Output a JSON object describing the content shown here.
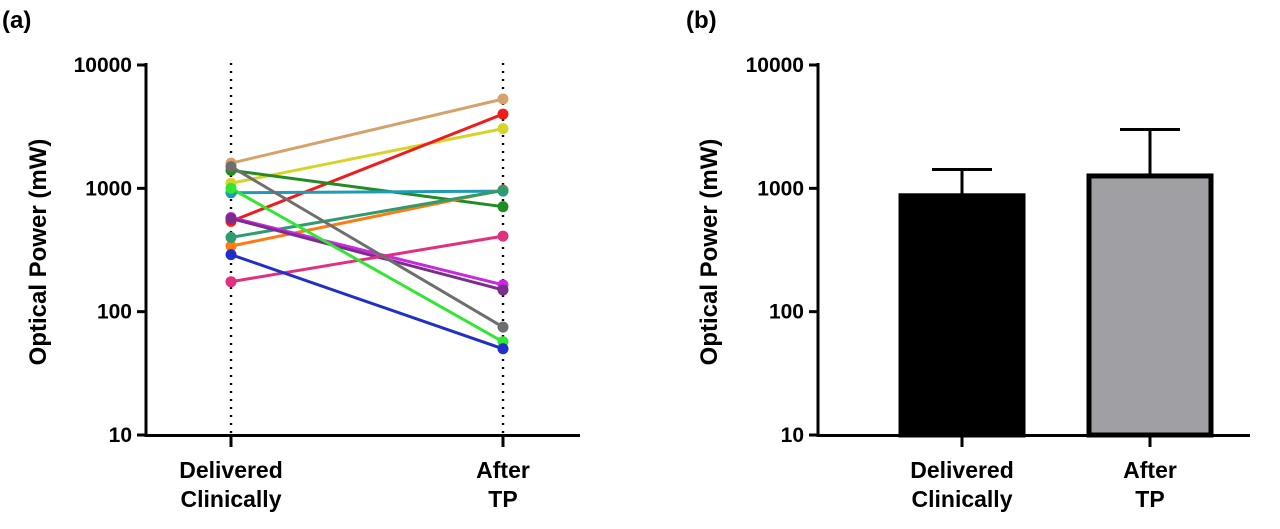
{
  "panels": [
    {
      "label": "(a)",
      "ylabel": "Optical Power (mW)",
      "yticks": [
        "10",
        "100",
        "1000",
        "10000"
      ],
      "categories": [
        "Delivered Clinically",
        "After TP"
      ]
    },
    {
      "label": "(b)",
      "ylabel": "Optical Power (mW)",
      "yticks": [
        "10",
        "100",
        "1000",
        "10000"
      ],
      "categories": [
        "Delivered Clinically",
        "After TP"
      ]
    }
  ],
  "chart_data": [
    {
      "type": "line",
      "xlabel": "",
      "ylabel": "Optical Power (mW)",
      "yscale": "log",
      "ylim": [
        10,
        10000
      ],
      "grid": false,
      "categories": [
        "Delivered Clinically",
        "After TP"
      ],
      "series": [
        {
          "color": "#D4A26A",
          "values": [
            1600,
            5300
          ]
        },
        {
          "color": "#D4D42A",
          "values": [
            1100,
            3050
          ]
        },
        {
          "color": "#EE1C1C",
          "values": [
            540,
            4000
          ]
        },
        {
          "color": "#228B22",
          "values": [
            1400,
            710
          ]
        },
        {
          "color": "#1F9BB5",
          "values": [
            920,
            950
          ]
        },
        {
          "color": "#FF7A10",
          "values": [
            340,
            970
          ]
        },
        {
          "color": "#2E9C6E",
          "values": [
            400,
            960
          ]
        },
        {
          "color": "#C82AE0",
          "values": [
            580,
            165
          ]
        },
        {
          "color": "#7B2D8E",
          "values": [
            570,
            150
          ]
        },
        {
          "color": "#E0307F",
          "values": [
            175,
            410
          ]
        },
        {
          "color": "#6E6E6E",
          "values": [
            1500,
            75
          ]
        },
        {
          "color": "#33E633",
          "values": [
            1000,
            57
          ]
        },
        {
          "color": "#1F2FC8",
          "values": [
            290,
            50
          ]
        }
      ]
    },
    {
      "type": "bar",
      "xlabel": "",
      "ylabel": "Optical Power (mW)",
      "yscale": "log",
      "ylim": [
        10,
        10000
      ],
      "grid": false,
      "categories": [
        "Delivered Clinically",
        "After TP"
      ],
      "values": [
        870,
        1260
      ],
      "error_upper": [
        1420,
        3000
      ],
      "colors": [
        "#000000",
        "#A0A0A4"
      ]
    }
  ]
}
